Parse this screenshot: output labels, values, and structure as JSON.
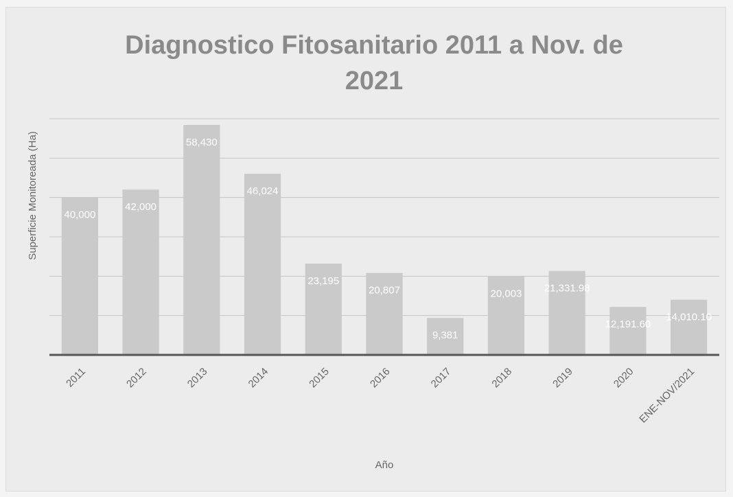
{
  "chart_data": {
    "type": "bar",
    "title": "Diagnostico Fitosanitario 2011 a Nov. de 2021",
    "x_label": "Año",
    "y_label": "Superficie Monitoreada (Ha)",
    "categories": [
      "2011",
      "2012",
      "2013",
      "2014",
      "2015",
      "2016",
      "2017",
      "2018",
      "2019",
      "2020",
      "ENE-NOV/2021"
    ],
    "values": [
      40000,
      42000,
      58430,
      46024,
      23195,
      20807,
      9381,
      20003,
      21331.98,
      12191.6,
      14010.1
    ],
    "value_labels": [
      "40,000",
      "42,000",
      "58,430",
      "46,024",
      "23,195",
      "20,807",
      "9,381",
      "20,003",
      "21,331.98",
      "12,191.60",
      "14,010.10"
    ],
    "color": "#cacaca",
    "ylim": [
      0,
      60000
    ],
    "yticks": [
      0,
      10000,
      20000,
      30000,
      40000,
      50000,
      60000
    ],
    "grid": true
  }
}
